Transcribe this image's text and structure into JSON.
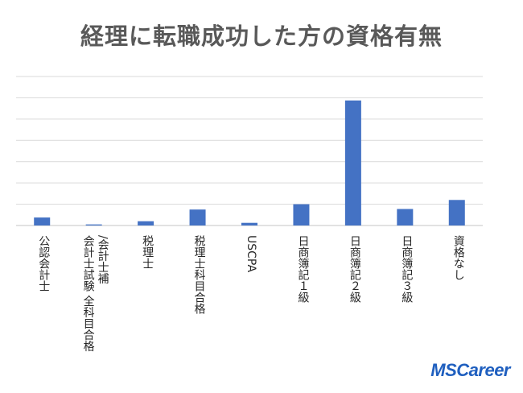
{
  "chart_data": {
    "type": "bar",
    "title": "経理に転職成功した方の資格有無",
    "categories": [
      [
        "公認会計士"
      ],
      [
        "会計士試験 全科目合格",
        "/会計士補"
      ],
      [
        "税理士"
      ],
      [
        "税理士科目合格"
      ],
      [
        "USCPA"
      ],
      [
        "日商簿記１級"
      ],
      [
        "日商簿記２級"
      ],
      [
        "日商簿記３級"
      ],
      [
        "資格なし"
      ]
    ],
    "values": [
      1.5,
      0.2,
      0.8,
      3.0,
      0.5,
      4.0,
      23.5,
      3.1,
      4.8
    ],
    "ylim": [
      0,
      28
    ],
    "gridlines": 7,
    "grid": true,
    "colors": {
      "bar": "#4472c4",
      "grid": "#d9d9d9",
      "label": "#262626",
      "title": "#595959"
    }
  },
  "brand": {
    "logo_text": "MSCareer"
  }
}
